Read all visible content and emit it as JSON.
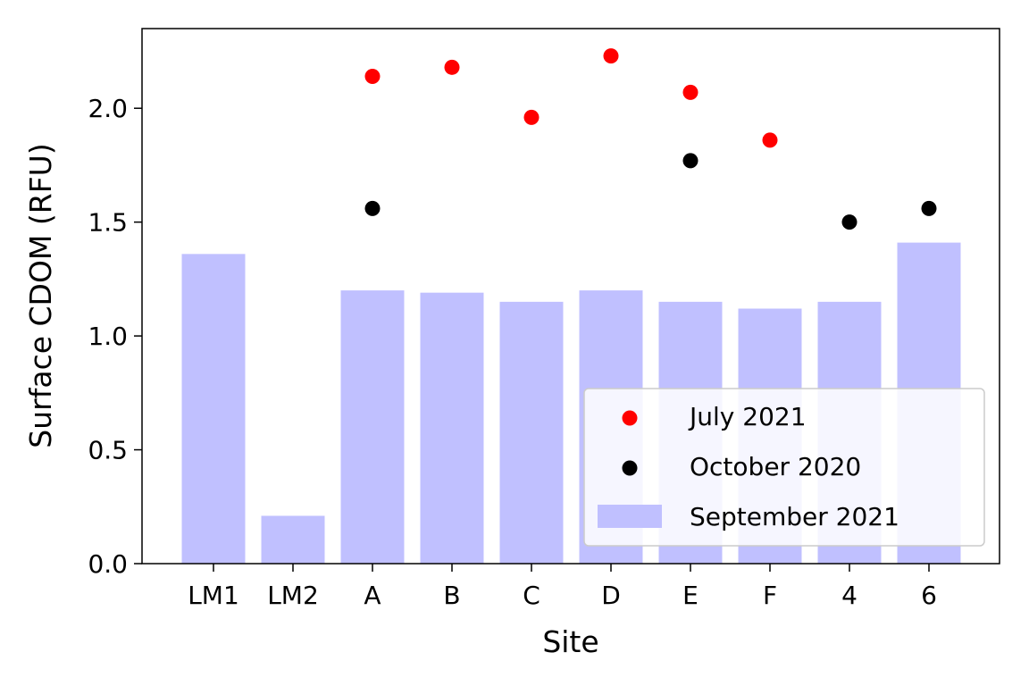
{
  "chart_data": {
    "type": "bar",
    "title": "",
    "xlabel": "Site",
    "ylabel": "Surface CDOM (RFU)",
    "categories": [
      "LM1",
      "LM2",
      "A",
      "B",
      "C",
      "D",
      "E",
      "F",
      "4",
      "6"
    ],
    "ylim": [
      0,
      2.35
    ],
    "yticks": [
      "0.0",
      "0.5",
      "1.0",
      "1.5",
      "2.0"
    ],
    "grid": false,
    "legend_position": "lower-right",
    "series": [
      {
        "name": "July 2021",
        "kind": "scatter",
        "color": "#ff0000",
        "values": [
          null,
          null,
          2.14,
          2.18,
          1.96,
          2.23,
          2.07,
          1.86,
          null,
          null
        ]
      },
      {
        "name": "October 2020",
        "kind": "scatter",
        "color": "#000000",
        "values": [
          null,
          null,
          1.56,
          null,
          null,
          null,
          1.77,
          null,
          1.5,
          1.56
        ]
      },
      {
        "name": "September 2021",
        "kind": "bar",
        "color": "#c0c0ff",
        "values": [
          1.36,
          0.21,
          1.2,
          1.19,
          1.15,
          1.2,
          1.15,
          1.12,
          1.15,
          1.41
        ]
      }
    ]
  }
}
